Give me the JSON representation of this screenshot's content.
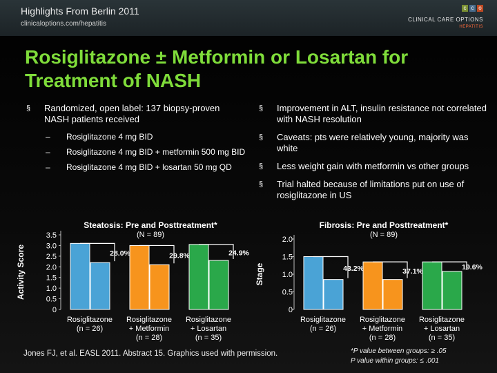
{
  "header": {
    "title": "Highlights From Berlin 2011",
    "url": "clinicaloptions.com/hepatitis",
    "logo": {
      "squares": [
        "c",
        "c",
        "o"
      ],
      "brand": "CLINICAL CARE OPTIONS",
      "sub": "HEPATITIS",
      "colors": [
        "#7a8f33",
        "#4a6d8c",
        "#bf4a23"
      ]
    }
  },
  "title": "Rosiglitazone ± Metformin or Losartan for Treatment of NASH",
  "bullet_marker": "§",
  "left": {
    "main": "Randomized, open label: 137 biopsy-proven NASH patients received",
    "sub_marker": "–",
    "arms": [
      "Rosiglitazone 4 mg BID",
      "Rosiglitazone 4 mg BID + metformin 500 mg BID",
      "Rosiglitazone 4 mg BID + losartan 50 mg QD"
    ]
  },
  "right": [
    "Improvement in ALT, insulin resistance not correlated with NASH resolution",
    "Caveats: pts were relatively young, majority was white",
    "Less weight gain with metformin vs other groups",
    "Trial halted because of limitations put on use of rosiglitazone in US"
  ],
  "footer": {
    "reference": "Jones FJ, et al. EASL 2011. Abstract 15. Graphics used with permission.",
    "footnote1": "*P value between groups: ≥ .05",
    "footnote2": "P value within groups: ≤ .001"
  },
  "chart_data": [
    {
      "type": "bar",
      "title": "Steatosis: Pre and Posttreatment*",
      "subtitle": "(N = 89)",
      "ylabel": "Activity Score",
      "ylim": [
        0,
        3.5
      ],
      "yticks": [
        "0",
        "0.5",
        "1.0",
        "1.5",
        "2.0",
        "2.5",
        "3.0",
        "3.5"
      ],
      "categories": [
        {
          "name": "Rosiglitazone",
          "n": "(n = 26)"
        },
        {
          "name": "Rosiglitazone",
          "plus": "+ Metformin",
          "n": "(n = 28)"
        },
        {
          "name": "Rosiglitazone",
          "plus": "+ Losartan",
          "n": "(n = 35)"
        }
      ],
      "series": [
        {
          "values": [
            3.1,
            3.0,
            3.05
          ]
        },
        {
          "values": [
            2.2,
            2.1,
            2.3
          ]
        }
      ],
      "colors": [
        [
          "#4aa3d6",
          "#4aa3d6"
        ],
        [
          "#f7941d",
          "#f7941d"
        ],
        [
          "#2aa84a",
          "#2aa84a"
        ]
      ],
      "reductions": [
        "28.0%",
        "29.8%",
        "24.9%"
      ]
    },
    {
      "type": "bar",
      "title": "Fibrosis: Pre and Posttreatment*",
      "subtitle": "(N = 89)",
      "ylabel": "Stage",
      "ylim": [
        0,
        2.0
      ],
      "yticks": [
        "0",
        "0.5",
        "1.0",
        "1.5",
        "2.0"
      ],
      "categories": [
        {
          "name": "Rosiglitazone",
          "n": "(n = 26)"
        },
        {
          "name": "Rosiglitazone",
          "plus": "+ Metformin",
          "n": "(n = 28)"
        },
        {
          "name": "Rosiglitazone",
          "plus": "+ Losartan",
          "n": "(n = 35)"
        }
      ],
      "series": [
        {
          "values": [
            1.5,
            1.35,
            1.35
          ]
        },
        {
          "values": [
            0.85,
            0.85,
            1.08
          ]
        }
      ],
      "colors": [
        [
          "#4aa3d6",
          "#4aa3d6"
        ],
        [
          "#f7941d",
          "#f7941d"
        ],
        [
          "#2aa84a",
          "#2aa84a"
        ]
      ],
      "reductions": [
        "43.2%",
        "37.1%",
        "19.6%"
      ]
    }
  ]
}
